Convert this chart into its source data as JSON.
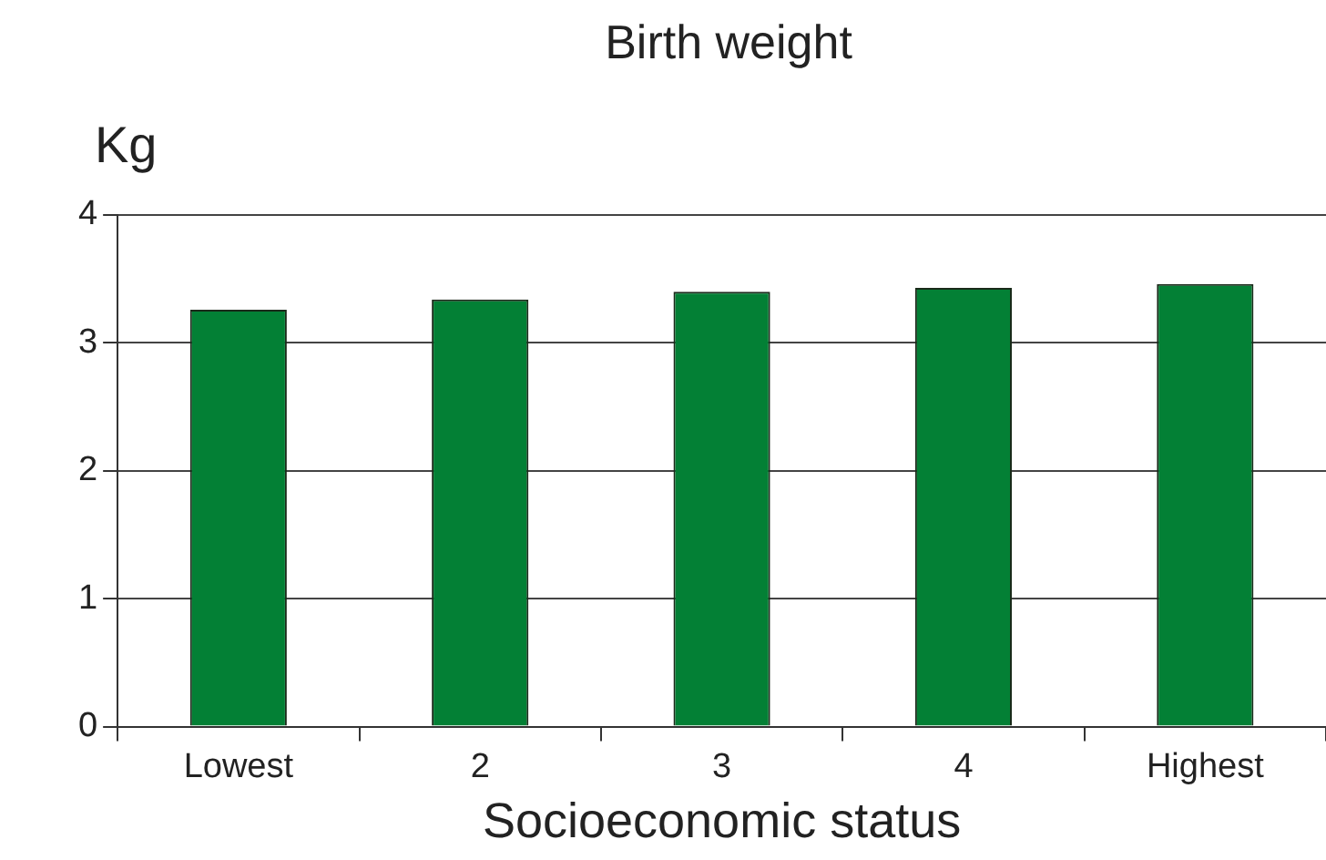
{
  "chart_data": {
    "type": "bar",
    "title": "Birth weight",
    "ylabel": "Kg",
    "xlabel": "Socioeconomic status",
    "categories": [
      "Lowest",
      "2",
      "3",
      "4",
      "Highest"
    ],
    "values": [
      3.26,
      3.34,
      3.4,
      3.43,
      3.46
    ],
    "color": "#038035",
    "ylim": [
      0,
      4
    ],
    "yticks": [
      0,
      1,
      2,
      3,
      4
    ],
    "grid": "y"
  }
}
